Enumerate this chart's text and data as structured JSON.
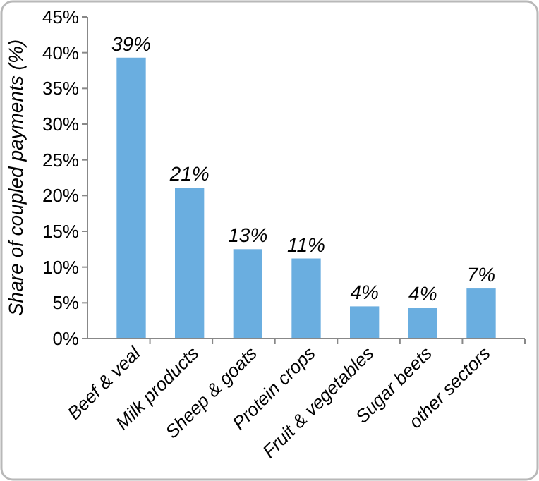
{
  "chart_data": {
    "type": "bar",
    "ylabel": "Share of coupled payments (%)",
    "categories": [
      "Beef & veal",
      "Milk products",
      "Sheep & goats",
      "Protein crops",
      "Fruit & vegetables",
      "Sugar beets",
      "other sectors"
    ],
    "values": [
      39.3,
      21.1,
      12.5,
      11.2,
      4.5,
      4.3,
      7.0
    ],
    "value_labels": [
      "39%",
      "21%",
      "13%",
      "11%",
      "4%",
      "4%",
      "7%"
    ],
    "color": "#6aaee0",
    "ylim": [
      0,
      45
    ],
    "yticks": [
      {
        "value": 0,
        "label": "0%"
      },
      {
        "value": 5,
        "label": "5%"
      },
      {
        "value": 10,
        "label": "10%"
      },
      {
        "value": 15,
        "label": "15%"
      },
      {
        "value": 20,
        "label": "20%"
      },
      {
        "value": 25,
        "label": "25%"
      },
      {
        "value": 30,
        "label": "30%"
      },
      {
        "value": 35,
        "label": "35%"
      },
      {
        "value": 40,
        "label": "40%"
      },
      {
        "value": 45,
        "label": "45%"
      }
    ],
    "grid": false
  }
}
